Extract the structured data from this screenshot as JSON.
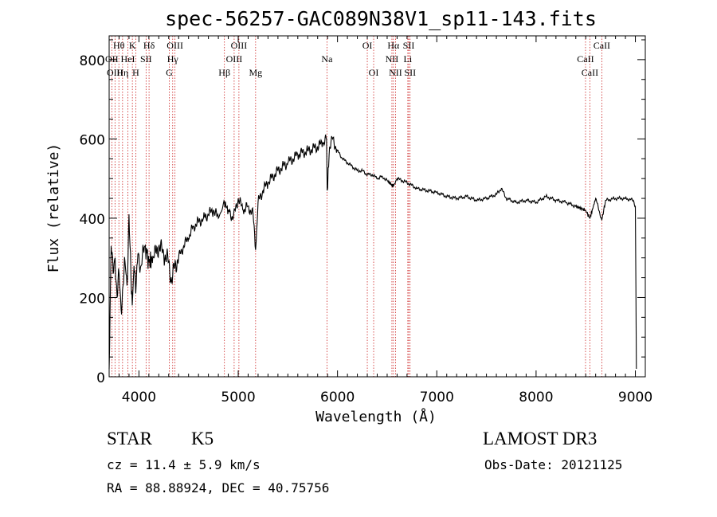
{
  "chart_data": {
    "type": "line",
    "title": "spec-56257-GAC089N38V1_sp11-143.fits",
    "xlabel": "Wavelength (Å)",
    "ylabel": "Flux (relative)",
    "xlim": [
      3700,
      9100
    ],
    "ylim": [
      0,
      860
    ],
    "xticks": [
      "4000",
      "5000",
      "6000",
      "7000",
      "8000",
      "9000"
    ],
    "yticks": [
      "0",
      "200",
      "400",
      "600",
      "800"
    ],
    "grid": false,
    "line_color": "#000000",
    "marker_color": "#cc2222",
    "spectrum": {
      "wavelength": [
        3700,
        3720,
        3740,
        3760,
        3780,
        3800,
        3820,
        3840,
        3860,
        3880,
        3900,
        3920,
        3933,
        3950,
        3968,
        3990,
        4020,
        4060,
        4102,
        4150,
        4200,
        4250,
        4300,
        4330,
        4360,
        4400,
        4450,
        4500,
        4550,
        4600,
        4650,
        4700,
        4750,
        4800,
        4861,
        4900,
        4950,
        5000,
        5050,
        5100,
        5150,
        5175,
        5200,
        5250,
        5300,
        5400,
        5500,
        5600,
        5700,
        5800,
        5850,
        5890,
        5896,
        5920,
        5950,
        6000,
        6050,
        6100,
        6150,
        6200,
        6250,
        6300,
        6350,
        6400,
        6450,
        6500,
        6563,
        6600,
        6650,
        6700,
        6800,
        6900,
        7000,
        7100,
        7200,
        7300,
        7400,
        7500,
        7600,
        7650,
        7700,
        7800,
        7900,
        8000,
        8100,
        8200,
        8300,
        8400,
        8498,
        8542,
        8600,
        8662,
        8700,
        8800,
        8900,
        8980,
        9000,
        9010
      ],
      "flux": [
        20,
        330,
        260,
        300,
        200,
        260,
        170,
        230,
        290,
        230,
        410,
        250,
        180,
        280,
        210,
        310,
        280,
        330,
        290,
        300,
        330,
        310,
        290,
        240,
        280,
        300,
        330,
        350,
        380,
        390,
        400,
        410,
        420,
        400,
        440,
        420,
        400,
        450,
        420,
        430,
        410,
        320,
        440,
        470,
        490,
        520,
        540,
        560,
        570,
        580,
        590,
        600,
        470,
        580,
        600,
        570,
        550,
        540,
        530,
        520,
        520,
        510,
        510,
        500,
        505,
        495,
        480,
        500,
        495,
        490,
        475,
        470,
        465,
        455,
        450,
        455,
        445,
        450,
        460,
        475,
        450,
        440,
        445,
        440,
        455,
        445,
        440,
        430,
        420,
        400,
        450,
        395,
        445,
        450,
        450,
        445,
        430,
        20
      ]
    },
    "lines": [
      {
        "label": "Hθ",
        "wavelength": 3798,
        "row": 0
      },
      {
        "label": "OII",
        "wavelength": 3727,
        "row": 1
      },
      {
        "label": "OIII",
        "wavelength": 3759,
        "row": 2
      },
      {
        "label": "Hη",
        "wavelength": 3835,
        "row": 2
      },
      {
        "label": "HeI",
        "wavelength": 3889,
        "row": 1
      },
      {
        "label": "K",
        "wavelength": 3934,
        "row": 0
      },
      {
        "label": "SII",
        "wavelength": 4072,
        "row": 1
      },
      {
        "label": "H",
        "wavelength": 3968,
        "row": 2
      },
      {
        "label": "Hδ",
        "wavelength": 4102,
        "row": 0
      },
      {
        "label": "OIII",
        "wavelength": 4363,
        "row": 0
      },
      {
        "label": "Hγ",
        "wavelength": 4340,
        "row": 1
      },
      {
        "label": "G",
        "wavelength": 4305,
        "row": 2
      },
      {
        "label": "Hβ",
        "wavelength": 4861,
        "row": 2
      },
      {
        "label": "OIII",
        "wavelength": 4959,
        "row": 1
      },
      {
        "label": "OIII",
        "wavelength": 5007,
        "row": 0
      },
      {
        "label": "Mg",
        "wavelength": 5175,
        "row": 2
      },
      {
        "label": "Na",
        "wavelength": 5894,
        "row": 1
      },
      {
        "label": "OI",
        "wavelength": 6300,
        "row": 0
      },
      {
        "label": "OI",
        "wavelength": 6364,
        "row": 2
      },
      {
        "label": "Hα",
        "wavelength": 6563,
        "row": 0
      },
      {
        "label": "NII",
        "wavelength": 6548,
        "row": 1
      },
      {
        "label": "NII",
        "wavelength": 6584,
        "row": 2
      },
      {
        "label": "SII",
        "wavelength": 6717,
        "row": 0
      },
      {
        "label": "Li",
        "wavelength": 6708,
        "row": 1
      },
      {
        "label": "SII",
        "wavelength": 6731,
        "row": 2
      },
      {
        "label": "CaII",
        "wavelength": 8662,
        "row": 0
      },
      {
        "label": "CaII",
        "wavelength": 8498,
        "row": 1
      },
      {
        "label": "CaII",
        "wavelength": 8542,
        "row": 2
      }
    ]
  },
  "info": {
    "object_class": "STAR",
    "subclass": "K5",
    "survey": "LAMOST DR3",
    "redshift": "cz =  11.4 ± 5.9 km/s",
    "obs_date": "Obs-Date: 20121125",
    "coords": "RA =  88.88924, DEC =  40.75756"
  }
}
